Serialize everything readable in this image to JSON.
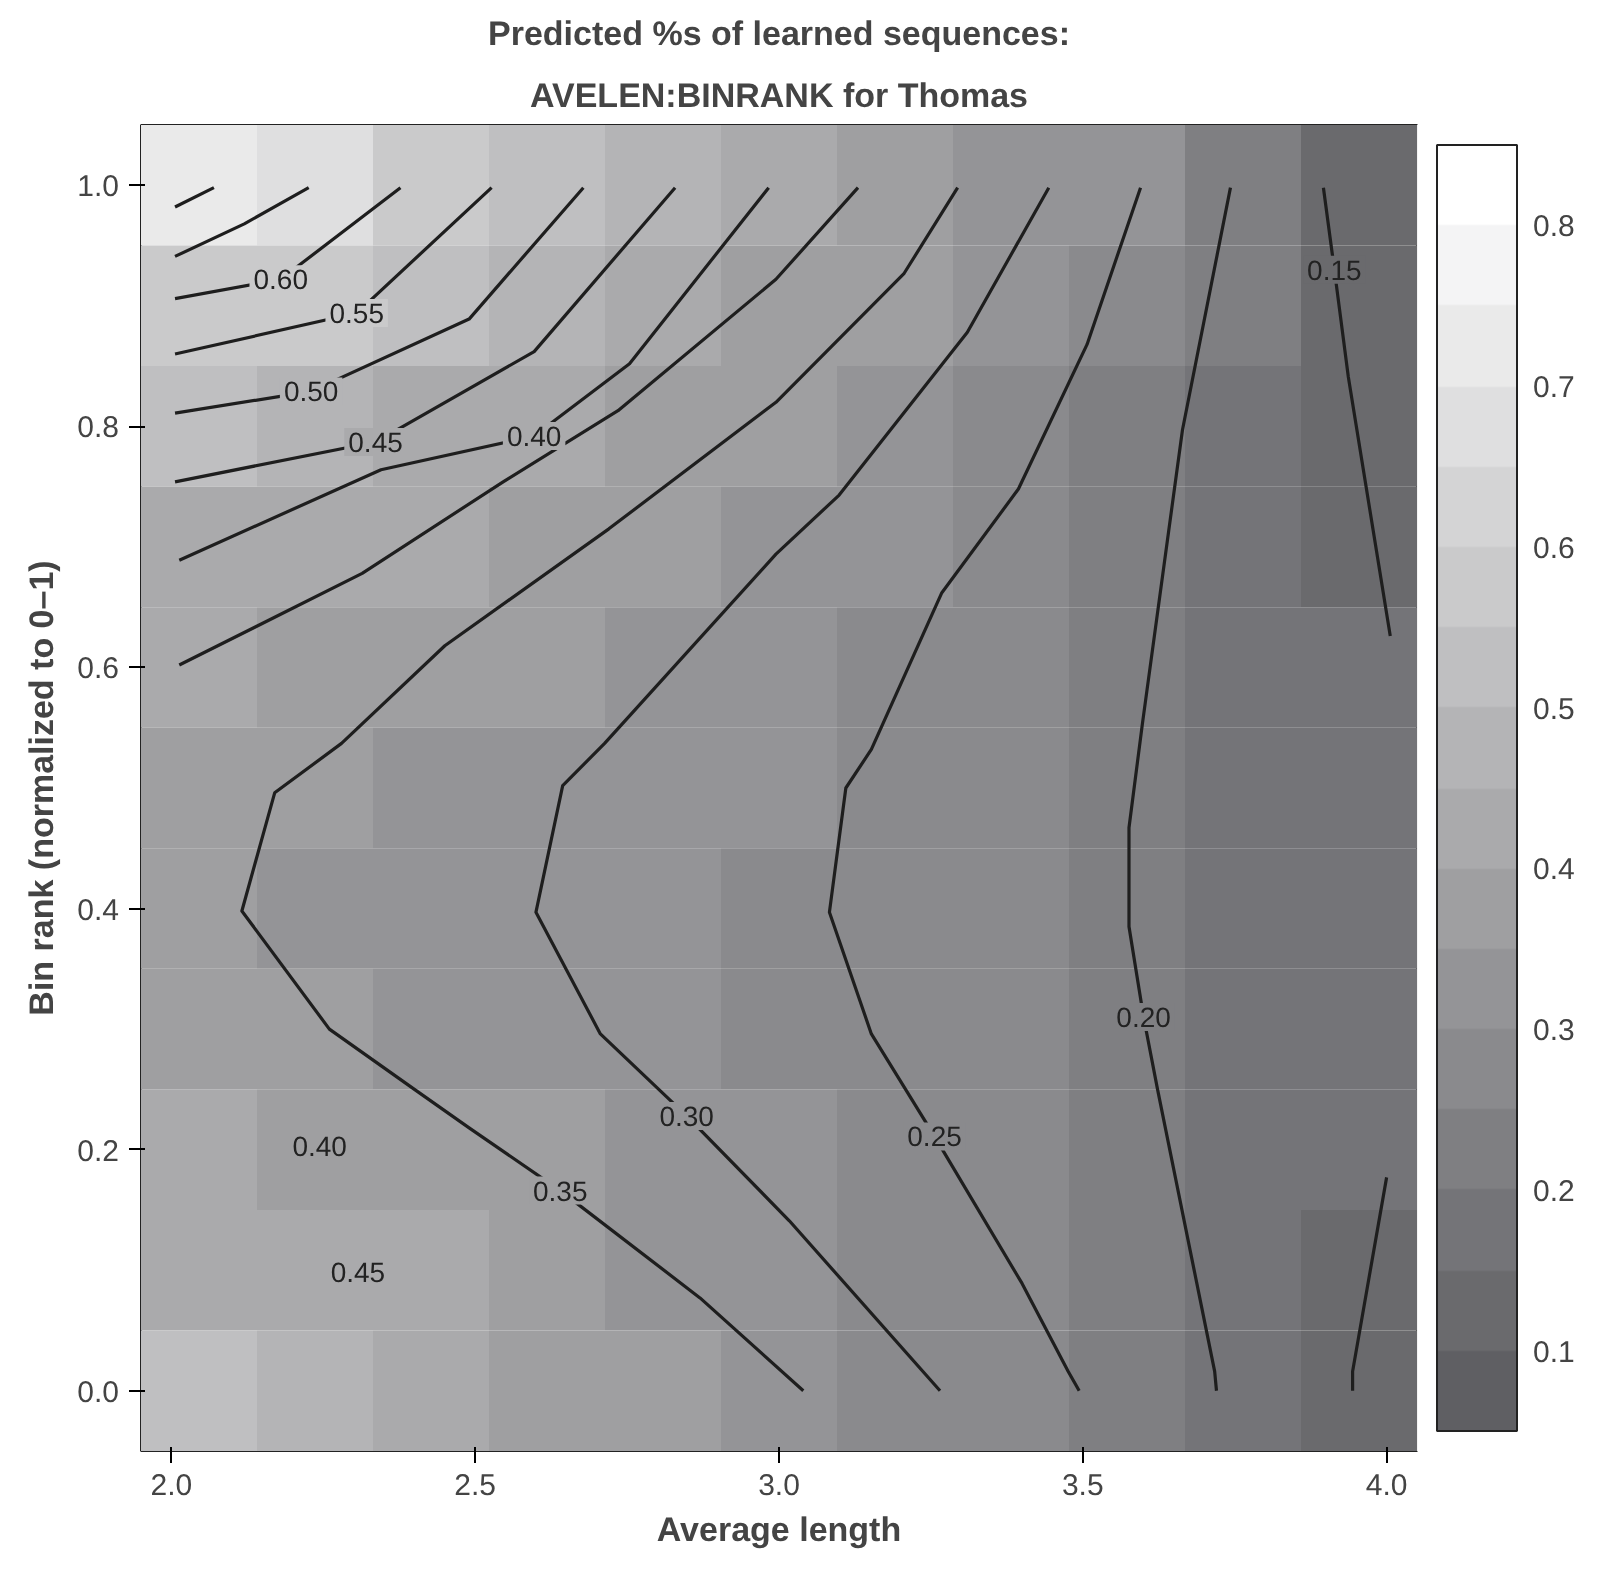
{
  "chart_data": {
    "type": "heatmap",
    "title": "Predicted %s of learned sequences:",
    "subtitle": "AVELEN:BINRANK for Thomas",
    "xlabel": "Average length",
    "ylabel": "Bin rank (normalized to 0–1)",
    "cells": [
      [
        0.72,
        0.66,
        0.6,
        0.54,
        0.48,
        0.42,
        0.36,
        0.34,
        0.3,
        0.22,
        0.14
      ],
      [
        0.6,
        0.56,
        0.52,
        0.47,
        0.43,
        0.39,
        0.35,
        0.3,
        0.25,
        0.2,
        0.14
      ],
      [
        0.5,
        0.47,
        0.44,
        0.41,
        0.38,
        0.35,
        0.32,
        0.28,
        0.24,
        0.19,
        0.14
      ],
      [
        0.44,
        0.42,
        0.4,
        0.38,
        0.35,
        0.33,
        0.3,
        0.27,
        0.23,
        0.19,
        0.15
      ],
      [
        0.4,
        0.38,
        0.37,
        0.35,
        0.33,
        0.31,
        0.29,
        0.26,
        0.22,
        0.19,
        0.16
      ],
      [
        0.37,
        0.35,
        0.34,
        0.33,
        0.31,
        0.3,
        0.28,
        0.25,
        0.22,
        0.19,
        0.17
      ],
      [
        0.36,
        0.34,
        0.33,
        0.32,
        0.3,
        0.29,
        0.27,
        0.25,
        0.22,
        0.19,
        0.17
      ],
      [
        0.38,
        0.36,
        0.34,
        0.32,
        0.31,
        0.29,
        0.27,
        0.25,
        0.22,
        0.19,
        0.17
      ],
      [
        0.4,
        0.39,
        0.37,
        0.35,
        0.32,
        0.3,
        0.28,
        0.25,
        0.22,
        0.19,
        0.16
      ],
      [
        0.44,
        0.42,
        0.4,
        0.37,
        0.34,
        0.31,
        0.28,
        0.25,
        0.22,
        0.19,
        0.15
      ],
      [
        0.52,
        0.47,
        0.43,
        0.39,
        0.36,
        0.33,
        0.29,
        0.26,
        0.22,
        0.18,
        0.14
      ]
    ],
    "clim": [
      0.05,
      0.85
    ],
    "cticks": [
      0.1,
      0.2,
      0.3,
      0.4,
      0.5,
      0.6,
      0.7,
      0.8
    ],
    "xlim": [
      1.95,
      4.05
    ],
    "xticks": [
      {
        "value": 2,
        "label": "2.0"
      },
      {
        "value": 2.5,
        "label": "2.5"
      },
      {
        "value": 3,
        "label": "3.0"
      },
      {
        "value": 3.5,
        "label": "3.5"
      },
      {
        "value": 4,
        "label": "4.0"
      }
    ],
    "ylim": [
      -0.05,
      1.05
    ],
    "yticks": [
      {
        "value": 0,
        "label": "0.0"
      },
      {
        "value": 0.2,
        "label": "0.2"
      },
      {
        "value": 0.4,
        "label": "0.4"
      },
      {
        "value": 0.6,
        "label": "0.6"
      },
      {
        "value": 0.8,
        "label": "0.8"
      },
      {
        "value": 1,
        "label": "1.0"
      }
    ],
    "series": [
      {
        "type": "line",
        "color": "#1e1e1e",
        "x": [
          2.006,
          2.07
        ],
        "values": [
          0.982,
          0.998
        ]
      },
      {
        "type": "line",
        "color": "#1e1e1e",
        "x": [
          2.006,
          2.12,
          2.226
        ],
        "values": [
          0.941,
          0.968,
          0.998
        ]
      },
      {
        "type": "line",
        "color": "#1e1e1e",
        "x": [
          2.006,
          2.18,
          2.377
        ],
        "values": [
          0.906,
          0.922,
          0.998
        ]
      },
      {
        "type": "line",
        "color": "#1e1e1e",
        "x": [
          2.006,
          2.305,
          2.527
        ],
        "values": [
          0.86,
          0.894,
          0.998
        ]
      },
      {
        "type": "line",
        "color": "#1e1e1e",
        "x": [
          2.006,
          2.23,
          2.49,
          2.678
        ],
        "values": [
          0.811,
          0.829,
          0.889,
          0.998
        ]
      },
      {
        "type": "line",
        "color": "#1e1e1e",
        "x": [
          2.006,
          2.336,
          2.597,
          2.829
        ],
        "values": [
          0.754,
          0.787,
          0.862,
          0.998
        ]
      },
      {
        "type": "line",
        "color": "#1e1e1e",
        "x": [
          2.013,
          2.345,
          2.597,
          2.754,
          2.983
        ],
        "values": [
          0.689,
          0.764,
          0.792,
          0.852,
          0.998
        ]
      },
      {
        "type": "line",
        "color": "#1e1e1e",
        "x": [
          2.013,
          2.314,
          2.546,
          2.735,
          2.995,
          3.13
        ],
        "values": [
          0.602,
          0.678,
          0.754,
          0.813,
          0.922,
          0.998
        ]
      },
      {
        "type": "line",
        "color": "#1e1e1e",
        "x": [
          3.04,
          2.87,
          2.64,
          2.49,
          2.4,
          2.26,
          2.116,
          2.17,
          2.28,
          2.45,
          2.72,
          2.995,
          3.206,
          3.294
        ],
        "values": [
          0.0,
          0.077,
          0.166,
          0.218,
          0.25,
          0.3,
          0.398,
          0.496,
          0.537,
          0.618,
          0.715,
          0.82,
          0.927,
          0.998
        ]
      },
      {
        "type": "line",
        "color": "#1e1e1e",
        "x": [
          3.265,
          3.017,
          2.848,
          2.706,
          2.6,
          2.644,
          2.713,
          2.995,
          3.099,
          3.31,
          3.444
        ],
        "values": [
          0.0,
          0.141,
          0.228,
          0.296,
          0.397,
          0.502,
          0.537,
          0.694,
          0.743,
          0.878,
          0.998
        ]
      },
      {
        "type": "line",
        "color": "#1e1e1e",
        "x": [
          3.494,
          3.476,
          3.4,
          3.256,
          3.152,
          3.083,
          3.11,
          3.152,
          3.268,
          3.394,
          3.507,
          3.595
        ],
        "values": [
          0.0,
          0.016,
          0.089,
          0.211,
          0.296,
          0.397,
          0.5,
          0.532,
          0.662,
          0.748,
          0.868,
          0.998
        ]
      },
      {
        "type": "line",
        "color": "#1e1e1e",
        "x": [
          3.72,
          3.717,
          3.623,
          3.6,
          3.576,
          3.576,
          3.598,
          3.664,
          3.743
        ],
        "values": [
          0.0,
          0.016,
          0.25,
          0.31,
          0.385,
          0.467,
          0.553,
          0.797,
          0.998
        ]
      },
      {
        "type": "line",
        "color": "#1e1e1e",
        "x": [
          3.896,
          3.914,
          3.937,
          4.006
        ],
        "values": [
          0.998,
          0.93,
          0.841,
          0.626
        ]
      },
      {
        "type": "line",
        "color": "#1e1e1e",
        "x": [
          3.944,
          3.944,
          4.0
        ],
        "values": [
          0.0,
          0.016,
          0.177
        ]
      }
    ],
    "annotations": [
      {
        "text": "0.60",
        "x": 2.18,
        "y": 0.922
      },
      {
        "text": "0.55",
        "x": 2.305,
        "y": 0.894
      },
      {
        "text": "0.50",
        "x": 2.23,
        "y": 0.829
      },
      {
        "text": "0.45",
        "x": 2.336,
        "y": 0.787
      },
      {
        "text": "0.40",
        "x": 2.597,
        "y": 0.792
      },
      {
        "text": "0.15",
        "x": 3.914,
        "y": 0.93
      },
      {
        "text": "0.20",
        "x": 3.6,
        "y": 0.31
      },
      {
        "text": "0.25",
        "x": 3.256,
        "y": 0.211
      },
      {
        "text": "0.30",
        "x": 2.848,
        "y": 0.228
      },
      {
        "text": "0.35",
        "x": 2.64,
        "y": 0.166
      },
      "0.40",
      "0.45"
    ],
    "grid": false
  }
}
